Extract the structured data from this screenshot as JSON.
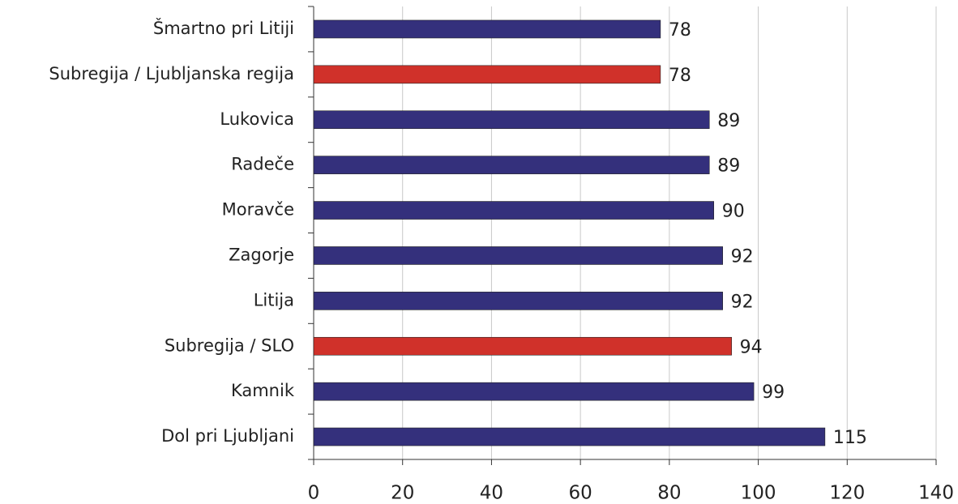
{
  "chart_data": {
    "type": "bar",
    "orientation": "horizontal",
    "categories": [
      "Šmartno pri Litiji",
      "Subregija / Ljubljanska regija",
      "Lukovica",
      "Radeče",
      "Moravče",
      "Zagorje",
      "Litija",
      "Subregija / SLO",
      "Kamnik",
      "Dol pri Ljubljani"
    ],
    "values": [
      78,
      78,
      89,
      89,
      90,
      92,
      92,
      94,
      99,
      115
    ],
    "colors": [
      "#34307c",
      "#d0312a",
      "#34307c",
      "#34307c",
      "#34307c",
      "#34307c",
      "#34307c",
      "#d0312a",
      "#34307c",
      "#34307c"
    ],
    "xlim": [
      0,
      140
    ],
    "xticks": [
      0,
      20,
      40,
      60,
      80,
      100,
      120,
      140
    ],
    "grid": true
  }
}
